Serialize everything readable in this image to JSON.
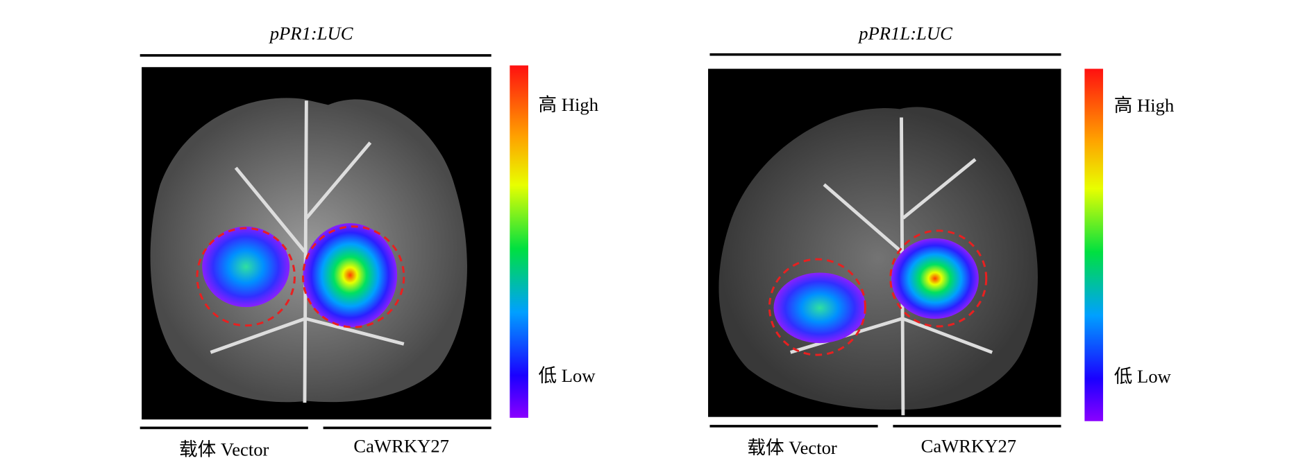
{
  "panels": [
    {
      "title": "pPR1:LUC",
      "labels": [
        "载体 Vector",
        "CaWRKY27"
      ],
      "colorbar": {
        "high": "高 High",
        "low": "低 Low"
      }
    },
    {
      "title": "pPR1L:LUC",
      "labels": [
        "载体 Vector",
        "CaWRKY27"
      ],
      "colorbar": {
        "high": "高 High",
        "low": "低 Low"
      }
    }
  ]
}
